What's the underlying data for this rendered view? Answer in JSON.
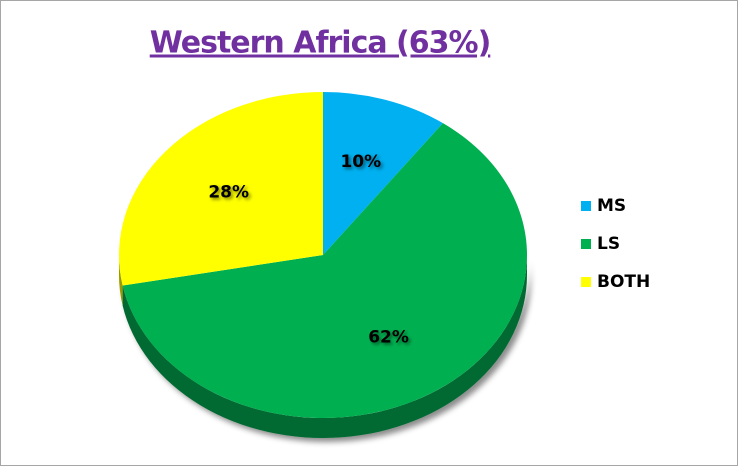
{
  "chart_data": {
    "type": "pie",
    "title": "Western Africa (63%)",
    "categories": [
      "MS",
      "LS",
      "BOTH"
    ],
    "values": [
      10,
      62,
      28
    ],
    "value_labels": [
      "10%",
      "62%",
      "28%"
    ],
    "colors": [
      "#00b0f0",
      "#00b050",
      "#ffff00"
    ],
    "legend": "right"
  }
}
